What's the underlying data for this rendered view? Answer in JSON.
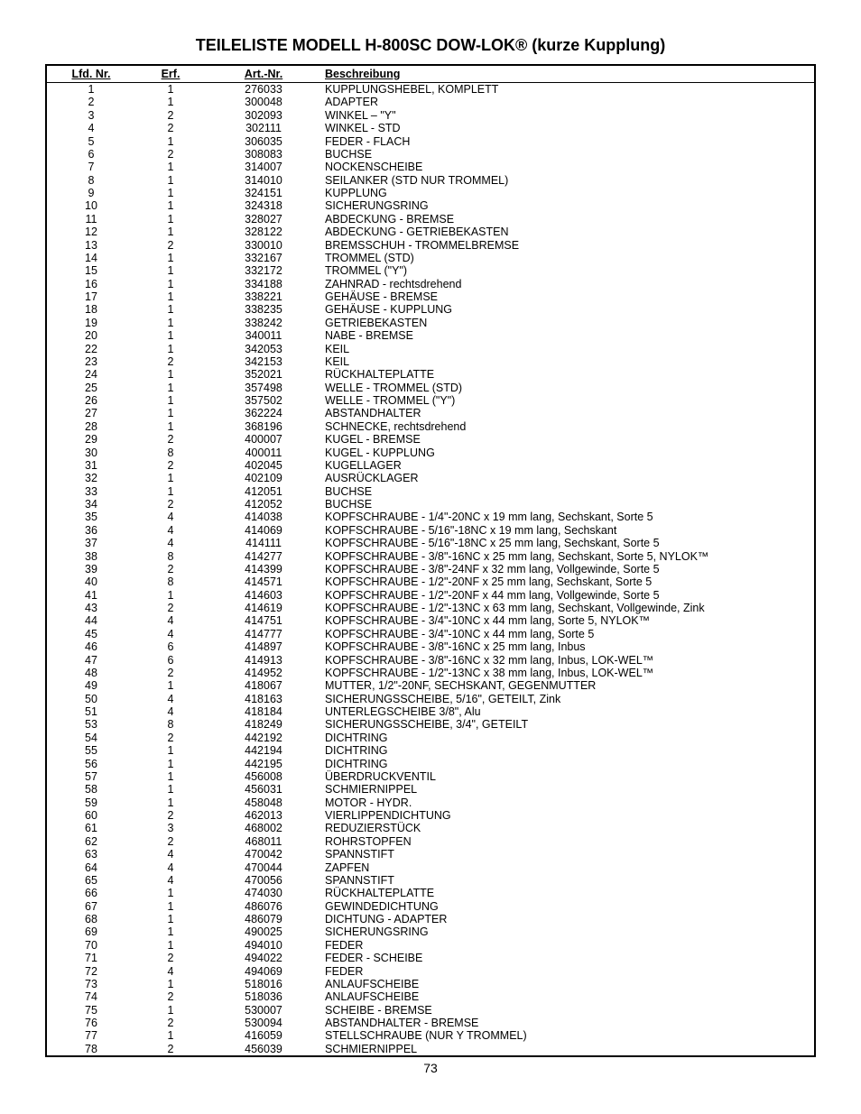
{
  "title": "TEILELISTE MODELL H-800SC DOW-LOK® (kurze Kupplung)",
  "page_number": "73",
  "columns": {
    "lfd": "Lfd. Nr.",
    "erf": "Erf.",
    "art": "Art.-Nr.",
    "desc": "Beschreibung"
  },
  "rows": [
    {
      "lfd": "1",
      "erf": "1",
      "art": "276033",
      "desc": "KUPPLUNGSHEBEL, KOMPLETT"
    },
    {
      "lfd": "2",
      "erf": "1",
      "art": "300048",
      "desc": "ADAPTER"
    },
    {
      "lfd": "3",
      "erf": "2",
      "art": "302093",
      "desc": "WINKEL – \"Y\""
    },
    {
      "lfd": "4",
      "erf": "2",
      "art": "302111",
      "desc": "WINKEL - STD"
    },
    {
      "lfd": "5",
      "erf": "1",
      "art": "306035",
      "desc": "FEDER - FLACH"
    },
    {
      "lfd": "6",
      "erf": "2",
      "art": "308083",
      "desc": "BUCHSE"
    },
    {
      "lfd": "7",
      "erf": "1",
      "art": "314007",
      "desc": "NOCKENSCHEIBE"
    },
    {
      "lfd": "8",
      "erf": "1",
      "art": "314010",
      "desc": "SEILANKER (STD NUR TROMMEL)"
    },
    {
      "lfd": "9",
      "erf": "1",
      "art": "324151",
      "desc": "KUPPLUNG"
    },
    {
      "lfd": "10",
      "erf": "1",
      "art": "324318",
      "desc": "SICHERUNGSRING"
    },
    {
      "lfd": "11",
      "erf": "1",
      "art": "328027",
      "desc": "ABDECKUNG - BREMSE"
    },
    {
      "lfd": "12",
      "erf": "1",
      "art": "328122",
      "desc": "ABDECKUNG - GETRIEBEKASTEN"
    },
    {
      "lfd": "13",
      "erf": "2",
      "art": "330010",
      "desc": "BREMSSCHUH - TROMMELBREMSE"
    },
    {
      "lfd": "14",
      "erf": "1",
      "art": "332167",
      "desc": "TROMMEL (STD)"
    },
    {
      "lfd": "15",
      "erf": "1",
      "art": "332172",
      "desc": "TROMMEL (\"Y\")"
    },
    {
      "lfd": "16",
      "erf": "1",
      "art": "334188",
      "desc": "ZAHNRAD - rechtsdrehend"
    },
    {
      "lfd": "17",
      "erf": "1",
      "art": "338221",
      "desc": "GEHÄUSE - BREMSE"
    },
    {
      "lfd": "18",
      "erf": "1",
      "art": "338235",
      "desc": "GEHÄUSE - KUPPLUNG"
    },
    {
      "lfd": "19",
      "erf": "1",
      "art": "338242",
      "desc": "GETRIEBEKASTEN"
    },
    {
      "lfd": "20",
      "erf": "1",
      "art": "340011",
      "desc": "NABE - BREMSE"
    },
    {
      "lfd": "22",
      "erf": "1",
      "art": "342053",
      "desc": "KEIL"
    },
    {
      "lfd": "23",
      "erf": "2",
      "art": "342153",
      "desc": "KEIL"
    },
    {
      "lfd": "24",
      "erf": "1",
      "art": "352021",
      "desc": "RÜCKHALTEPLATTE"
    },
    {
      "lfd": "25",
      "erf": "1",
      "art": "357498",
      "desc": "WELLE - TROMMEL (STD)"
    },
    {
      "lfd": "26",
      "erf": "1",
      "art": "357502",
      "desc": "WELLE - TROMMEL (\"Y\")"
    },
    {
      "lfd": "27",
      "erf": "1",
      "art": "362224",
      "desc": "ABSTANDHALTER"
    },
    {
      "lfd": "28",
      "erf": "1",
      "art": "368196",
      "desc": "SCHNECKE, rechtsdrehend"
    },
    {
      "lfd": "29",
      "erf": "2",
      "art": "400007",
      "desc": "KUGEL - BREMSE"
    },
    {
      "lfd": "30",
      "erf": "8",
      "art": "400011",
      "desc": "KUGEL - KUPPLUNG"
    },
    {
      "lfd": "31",
      "erf": "2",
      "art": "402045",
      "desc": "KUGELLAGER"
    },
    {
      "lfd": "32",
      "erf": "1",
      "art": "402109",
      "desc": "AUSRÜCKLAGER"
    },
    {
      "lfd": "33",
      "erf": "1",
      "art": "412051",
      "desc": "BUCHSE"
    },
    {
      "lfd": "34",
      "erf": "2",
      "art": "412052",
      "desc": "BUCHSE"
    },
    {
      "lfd": "35",
      "erf": "4",
      "art": "414038",
      "desc": "KOPFSCHRAUBE - 1/4\"-20NC x 19 mm lang, Sechskant, Sorte 5"
    },
    {
      "lfd": "36",
      "erf": "4",
      "art": "414069",
      "desc": "KOPFSCHRAUBE - 5/16\"-18NC x 19 mm lang, Sechskant"
    },
    {
      "lfd": "37",
      "erf": "4",
      "art": "414111",
      "desc": "KOPFSCHRAUBE - 5/16\"-18NC x 25 mm lang, Sechskant, Sorte 5"
    },
    {
      "lfd": "38",
      "erf": "8",
      "art": "414277",
      "desc": "KOPFSCHRAUBE - 3/8\"-16NC x 25 mm lang, Sechskant, Sorte 5, NYLOK™"
    },
    {
      "lfd": "39",
      "erf": "2",
      "art": "414399",
      "desc": "KOPFSCHRAUBE - 3/8\"-24NF x 32 mm lang, Vollgewinde, Sorte 5"
    },
    {
      "lfd": "40",
      "erf": "8",
      "art": "414571",
      "desc": "KOPFSCHRAUBE - 1/2\"-20NF x 25 mm lang, Sechskant, Sorte 5"
    },
    {
      "lfd": "41",
      "erf": "1",
      "art": "414603",
      "desc": "KOPFSCHRAUBE - 1/2\"-20NF x 44 mm lang, Vollgewinde, Sorte 5"
    },
    {
      "lfd": "43",
      "erf": "2",
      "art": "414619",
      "desc": "KOPFSCHRAUBE - 1/2\"-13NC x 63 mm lang, Sechskant, Vollgewinde, Zink"
    },
    {
      "lfd": "44",
      "erf": "4",
      "art": "414751",
      "desc": "KOPFSCHRAUBE - 3/4\"-10NC x 44 mm lang, Sorte 5, NYLOK™"
    },
    {
      "lfd": "45",
      "erf": "4",
      "art": "414777",
      "desc": "KOPFSCHRAUBE - 3/4\"-10NC x 44 mm lang, Sorte 5"
    },
    {
      "lfd": "46",
      "erf": "6",
      "art": "414897",
      "desc": "KOPFSCHRAUBE - 3/8\"-16NC x 25 mm lang, Inbus"
    },
    {
      "lfd": "47",
      "erf": "6",
      "art": "414913",
      "desc": "KOPFSCHRAUBE - 3/8\"-16NC x 32 mm lang, Inbus, LOK-WEL™"
    },
    {
      "lfd": "48",
      "erf": "2",
      "art": "414952",
      "desc": "KOPFSCHRAUBE - 1/2\"-13NC x 38 mm lang, Inbus, LOK-WEL™"
    },
    {
      "lfd": "49",
      "erf": "1",
      "art": "418067",
      "desc": "MUTTER, 1/2\"-20NF, SECHSKANT, GEGENMUTTER"
    },
    {
      "lfd": "50",
      "erf": "4",
      "art": "418163",
      "desc": "SICHERUNGSSCHEIBE, 5/16\", GETEILT, Zink"
    },
    {
      "lfd": "51",
      "erf": "4",
      "art": "418184",
      "desc": "UNTERLEGSCHEIBE 3/8\", Alu"
    },
    {
      "lfd": "53",
      "erf": "8",
      "art": "418249",
      "desc": "SICHERUNGSSCHEIBE, 3/4\", GETEILT"
    },
    {
      "lfd": "54",
      "erf": "2",
      "art": "442192",
      "desc": "DICHTRING"
    },
    {
      "lfd": "55",
      "erf": "1",
      "art": "442194",
      "desc": "DICHTRING"
    },
    {
      "lfd": "56",
      "erf": "1",
      "art": "442195",
      "desc": "DICHTRING"
    },
    {
      "lfd": "57",
      "erf": "1",
      "art": "456008",
      "desc": "ÜBERDRUCKVENTIL"
    },
    {
      "lfd": "58",
      "erf": "1",
      "art": "456031",
      "desc": "SCHMIERNIPPEL"
    },
    {
      "lfd": "59",
      "erf": "1",
      "art": "458048",
      "desc": "MOTOR - HYDR."
    },
    {
      "lfd": "60",
      "erf": "2",
      "art": "462013",
      "desc": "VIERLIPPENDICHTUNG"
    },
    {
      "lfd": "61",
      "erf": "3",
      "art": "468002",
      "desc": "REDUZIERSTÜCK"
    },
    {
      "lfd": "62",
      "erf": "2",
      "art": "468011",
      "desc": "ROHRSTOPFEN"
    },
    {
      "lfd": "63",
      "erf": "4",
      "art": "470042",
      "desc": "SPANNSTIFT"
    },
    {
      "lfd": "64",
      "erf": "4",
      "art": "470044",
      "desc": "ZAPFEN"
    },
    {
      "lfd": "65",
      "erf": "4",
      "art": "470056",
      "desc": "SPANNSTIFT"
    },
    {
      "lfd": "66",
      "erf": "1",
      "art": "474030",
      "desc": "RÜCKHALTEPLATTE"
    },
    {
      "lfd": "67",
      "erf": "1",
      "art": "486076",
      "desc": "GEWINDEDICHTUNG"
    },
    {
      "lfd": "68",
      "erf": "1",
      "art": "486079",
      "desc": "DICHTUNG - ADAPTER"
    },
    {
      "lfd": "69",
      "erf": "1",
      "art": "490025",
      "desc": "SICHERUNGSRING"
    },
    "",
    {
      "lfd": "70",
      "erf": "1",
      "art": "494010",
      "desc": "FEDER"
    },
    {
      "lfd": "71",
      "erf": "2",
      "art": "494022",
      "desc": "FEDER - SCHEIBE"
    },
    {
      "lfd": "72",
      "erf": "4",
      "art": "494069",
      "desc": "FEDER"
    },
    {
      "lfd": "73",
      "erf": "1",
      "art": "518016",
      "desc": "ANLAUFSCHEIBE"
    },
    {
      "lfd": "74",
      "erf": "2",
      "art": "518036",
      "desc": "ANLAUFSCHEIBE"
    },
    {
      "lfd": "75",
      "erf": "1",
      "art": "530007",
      "desc": "SCHEIBE - BREMSE"
    },
    {
      "lfd": "76",
      "erf": "2",
      "art": "530094",
      "desc": "ABSTANDHALTER - BREMSE"
    },
    {
      "lfd": "77",
      "erf": "1",
      "art": "416059",
      "desc": "STELLSCHRAUBE (NUR Y TROMMEL)"
    },
    {
      "lfd": "78",
      "erf": "2",
      "art": "456039",
      "desc": "SCHMIERNIPPEL"
    }
  ]
}
